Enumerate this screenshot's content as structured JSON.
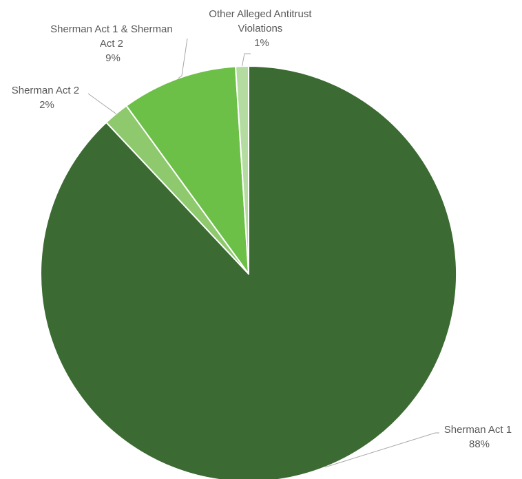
{
  "chart_data": {
    "type": "pie",
    "title": "",
    "slices": [
      {
        "label": "Sherman Act 1",
        "value": 88,
        "value_label": "88%",
        "color": "#3b6a32"
      },
      {
        "label": "Sherman Act 2",
        "value": 2,
        "value_label": "2%",
        "color": "#8ec96e"
      },
      {
        "label": "Sherman Act 1 & Sherman Act 2",
        "value": 9,
        "value_label": "9%",
        "color": "#6cbf47"
      },
      {
        "label": "Other Alleged Antitrust Violations",
        "value": 1,
        "value_label": "1%",
        "color": "#b5dca0"
      }
    ],
    "data_labels": [
      {
        "lines": [
          "Sherman Act 1",
          "88%"
        ]
      },
      {
        "lines": [
          "Sherman Act 2",
          "2%"
        ]
      },
      {
        "lines": [
          "Sherman Act 1 & Sherman",
          "Act 2",
          "9%"
        ]
      },
      {
        "lines": [
          "Other Alleged Antitrust",
          "Violations",
          "1%"
        ]
      }
    ]
  }
}
